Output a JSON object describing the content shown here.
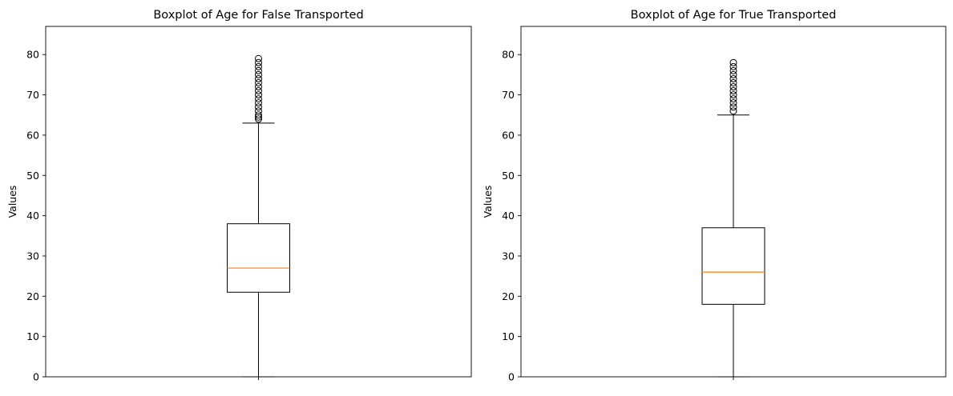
{
  "colors": {
    "box": "#000000",
    "median": "#ff7f0e",
    "background": "#ffffff"
  },
  "chart_data": [
    {
      "type": "boxplot",
      "title": "Boxplot of Age for False Transported",
      "xlabel": "",
      "ylabel": "Values",
      "ylim": [
        0,
        87
      ],
      "yticks": [
        0,
        10,
        20,
        30,
        40,
        50,
        60,
        70,
        80
      ],
      "grid": false,
      "box": {
        "whisker_low": 0,
        "q1": 21,
        "median": 27,
        "q3": 38,
        "whisker_high": 63,
        "outliers": [
          64,
          64.5,
          65,
          66,
          67,
          68,
          69,
          70,
          71,
          72,
          73,
          74,
          75,
          76,
          77,
          78,
          79
        ]
      }
    },
    {
      "type": "boxplot",
      "title": "Boxplot of Age for True Transported",
      "xlabel": "",
      "ylabel": "Values",
      "ylim": [
        0,
        87
      ],
      "yticks": [
        0,
        10,
        20,
        30,
        40,
        50,
        60,
        70,
        80
      ],
      "grid": false,
      "box": {
        "whisker_low": 0,
        "q1": 18,
        "median": 26,
        "q3": 37,
        "whisker_high": 65,
        "outliers": [
          66,
          67,
          68,
          69,
          70,
          71,
          72,
          73,
          74,
          75,
          76,
          77,
          78
        ]
      }
    }
  ]
}
